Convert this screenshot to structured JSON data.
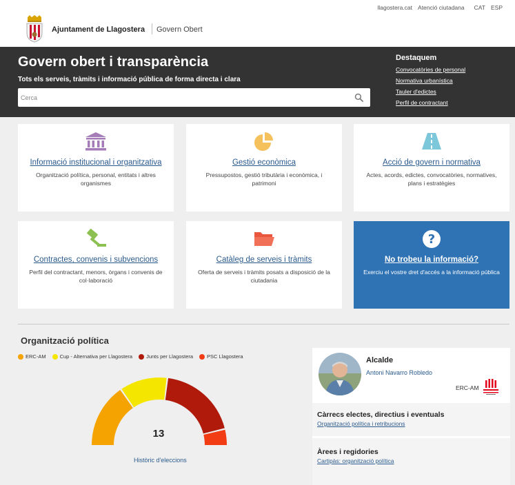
{
  "toplinks": {
    "site": "llagostera.cat",
    "attention": "Atenció ciutadana",
    "lang_cat": "CAT",
    "lang_esp": "ESP"
  },
  "brand": {
    "name": "Ajuntament de Llagostera",
    "section": "Govern Obert"
  },
  "hero": {
    "title": "Govern obert i transparència",
    "subtitle": "Tots els serveis, tràmits i informació pública de forma directa i clara",
    "search_placeholder": "Cerca"
  },
  "destaquem": {
    "title": "Destaquem",
    "links": [
      "Convocatòries de personal",
      "Normativa urbanística",
      "Tauler d'edictes",
      "Perfil de contractant"
    ]
  },
  "cards": [
    {
      "icon": "institution-icon",
      "title": "Informació institucional i organitzativa",
      "desc": "Organització política, personal, entitats i altres organismes"
    },
    {
      "icon": "pie-chart-icon",
      "title": "Gestió econòmica",
      "desc": "Pressupostos, gestió tributària i econòmica, i patrimoni"
    },
    {
      "icon": "road-icon",
      "title": "Acció de govern i normativa",
      "desc": "Actes, acords, edictes, convocatòries, normatives, plans i estratègies"
    },
    {
      "icon": "gavel-icon",
      "title": "Contractes, convenis i subvencions",
      "desc": "Perfil del contractant, menors, òrgans i convenis de col·laboració"
    },
    {
      "icon": "folder-icon",
      "title": "Catàleg de serveis i tràmits",
      "desc": "Oferta de serveis i tràmits posats a disposició de la ciutadania"
    },
    {
      "icon": "question-icon",
      "title": "No trobeu la informació?",
      "desc": "Exerciu el vostre dret d'accés a la informació pública"
    }
  ],
  "org": {
    "title": "Organització política",
    "legend": [
      {
        "name": "ERC-AM",
        "color": "#f5a300"
      },
      {
        "name": "Cup - Alternativa per Llagostera",
        "color": "#f5e600"
      },
      {
        "name": "Junts per Llagostera",
        "color": "#b01a0a"
      },
      {
        "name": "PSC Llagostera",
        "color": "#f23c14"
      }
    ],
    "total": "13",
    "historic_link": "Històric d'eleccions"
  },
  "chart_data": {
    "type": "pie",
    "variant": "half-donut",
    "categories": [
      "ERC-AM",
      "Cup - Alternativa per Llagostera",
      "Junts per Llagostera",
      "PSC Llagostera"
    ],
    "values": [
      4,
      3,
      5,
      1
    ],
    "colors": [
      "#f5a300",
      "#f5e600",
      "#b01a0a",
      "#f23c14"
    ],
    "total_label": "13"
  },
  "mayor": {
    "title": "Alcalde",
    "name": "Antoni Navarro Robledo",
    "party": "ERC-AM",
    "party_logo_text": "ESQUERRA REPUBLICANA"
  },
  "sections": [
    {
      "title": "Càrrecs electes, directius i eventuals",
      "link": "Organització política i retribucions"
    },
    {
      "title": "Àrees i regidories",
      "link": "Cartipàs: organització política"
    }
  ]
}
